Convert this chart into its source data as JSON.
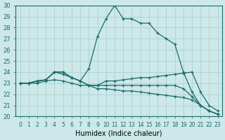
{
  "xlabel": "Humidex (Indice chaleur)",
  "xlim": [
    -0.5,
    23.5
  ],
  "ylim": [
    20,
    30
  ],
  "yticks": [
    20,
    21,
    22,
    23,
    24,
    25,
    26,
    27,
    28,
    29,
    30
  ],
  "xticks": [
    0,
    1,
    2,
    3,
    4,
    5,
    6,
    7,
    8,
    9,
    10,
    11,
    12,
    13,
    14,
    15,
    16,
    17,
    18,
    19,
    20,
    21,
    22,
    23
  ],
  "bg_color": "#cce8e8",
  "line_color": "#1a6b6b",
  "grid_color": "#b0d0d0",
  "lines": [
    [
      23.0,
      23.0,
      23.2,
      23.3,
      24.0,
      24.0,
      23.5,
      23.2,
      24.3,
      27.2,
      28.8,
      30.0,
      28.8,
      28.8,
      28.4,
      28.4,
      27.5,
      27.0,
      26.5,
      24.0,
      22.2,
      21.0,
      20.5,
      20.2
    ],
    [
      23.0,
      23.0,
      23.2,
      23.3,
      24.0,
      24.0,
      23.5,
      23.2,
      22.8,
      22.8,
      23.2,
      23.2,
      23.3,
      23.4,
      23.5,
      23.5,
      23.6,
      23.7,
      23.8,
      23.9,
      24.0,
      22.2,
      21.0,
      20.5
    ],
    [
      23.0,
      23.0,
      23.2,
      23.3,
      24.0,
      23.8,
      23.5,
      23.2,
      22.8,
      22.5,
      22.5,
      22.4,
      22.3,
      22.3,
      22.2,
      22.1,
      22.0,
      21.9,
      21.8,
      21.7,
      21.5,
      21.0,
      20.5,
      20.2
    ],
    [
      23.0,
      23.0,
      23.0,
      23.2,
      23.3,
      23.2,
      23.0,
      22.8,
      22.8,
      22.8,
      22.8,
      22.8,
      22.8,
      22.8,
      22.8,
      22.8,
      22.8,
      22.8,
      22.8,
      22.5,
      21.8,
      21.0,
      20.5,
      20.2
    ]
  ]
}
